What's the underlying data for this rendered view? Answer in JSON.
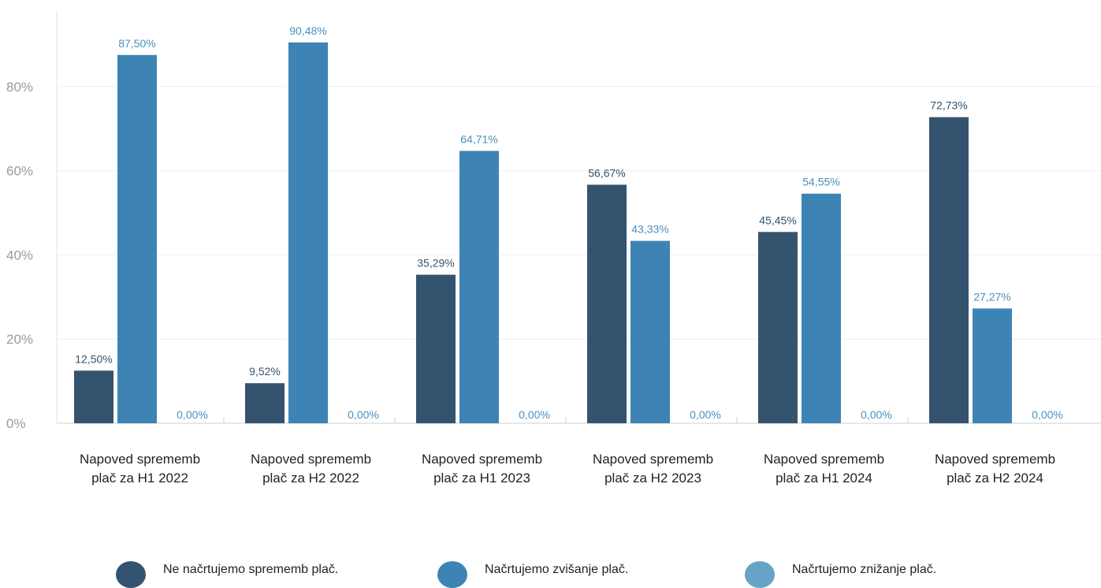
{
  "chart_data": {
    "type": "bar",
    "categories": [
      [
        "Napoved sprememb",
        "plač za H1 2022"
      ],
      [
        "Napoved sprememb",
        "plač za H2 2022"
      ],
      [
        "Napoved sprememb",
        "plač za H1 2023"
      ],
      [
        "Napoved sprememb",
        "plač za H2 2023"
      ],
      [
        "Napoved sprememb",
        "plač za H1 2024"
      ],
      [
        "Napoved sprememb",
        "plač za H2 2024"
      ]
    ],
    "series": [
      {
        "name": "Ne načrtujemo sprememb plač.",
        "color": "#34536f",
        "values": [
          12.5,
          9.52,
          35.29,
          56.67,
          45.45,
          72.73
        ],
        "labels": [
          "12,50%",
          "9,52%",
          "35,29%",
          "56,67%",
          "45,45%",
          "72,73%"
        ]
      },
      {
        "name": "Načrtujemo zvišanje plač.",
        "color": "#3d84b5",
        "values": [
          87.5,
          90.48,
          64.71,
          43.33,
          54.55,
          27.27
        ],
        "labels": [
          "87,50%",
          "90,48%",
          "64,71%",
          "43,33%",
          "54,55%",
          "27,27%"
        ]
      },
      {
        "name": "Načrtujemo znižanje plač.",
        "color": "#66a3c5",
        "values": [
          0,
          0,
          0,
          0,
          0,
          0
        ],
        "labels": [
          "0,00%",
          "0,00%",
          "0,00%",
          "0,00%",
          "0,00%",
          "0,00%"
        ]
      }
    ],
    "yticks": [
      0,
      20,
      40,
      60,
      80
    ],
    "ytick_labels": [
      "0%",
      "20%",
      "40%",
      "60%",
      "80%"
    ],
    "ylim": [
      0,
      100
    ],
    "grid": true,
    "legend_position": "bottom",
    "label_colors": {
      "dark": "#34536f",
      "light": "#4a90c0"
    }
  }
}
